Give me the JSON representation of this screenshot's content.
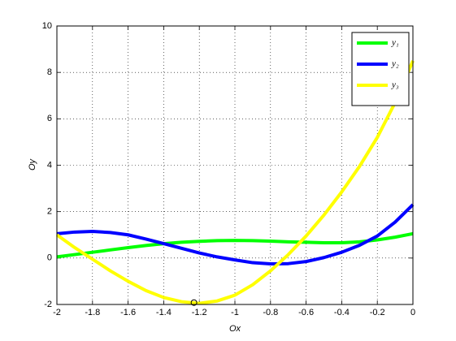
{
  "chart_data": {
    "type": "line",
    "x_label": "Ox",
    "y_label": "Oy",
    "x": [
      -2,
      -1.9,
      -1.8,
      -1.7,
      -1.6,
      -1.5,
      -1.4,
      -1.3,
      -1.2,
      -1.1,
      -1,
      -0.9,
      -0.8,
      -0.7,
      -0.6,
      -0.5,
      -0.4,
      -0.3,
      -0.2,
      -0.1,
      0
    ],
    "series": [
      {
        "name": "y₁",
        "color": "#00ff00",
        "values": [
          0.05,
          0.15,
          0.25,
          0.35,
          0.45,
          0.54,
          0.62,
          0.68,
          0.72,
          0.75,
          0.76,
          0.75,
          0.73,
          0.7,
          0.68,
          0.66,
          0.66,
          0.7,
          0.78,
          0.9,
          1.05
        ]
      },
      {
        "name": "y₂",
        "color": "#0000ff",
        "values": [
          1.05,
          1.12,
          1.15,
          1.1,
          1.0,
          0.82,
          0.62,
          0.42,
          0.22,
          0.05,
          -0.08,
          -0.2,
          -0.25,
          -0.24,
          -0.15,
          0.02,
          0.25,
          0.55,
          0.95,
          1.55,
          2.3
        ]
      },
      {
        "name": "y₃",
        "color": "#ffff00",
        "values": [
          1.0,
          0.45,
          -0.05,
          -0.55,
          -1.0,
          -1.4,
          -1.7,
          -1.88,
          -1.95,
          -1.85,
          -1.6,
          -1.15,
          -0.55,
          0.15,
          0.95,
          1.85,
          2.85,
          3.95,
          5.2,
          6.7,
          8.5
        ]
      }
    ],
    "marker": {
      "x": -1.23,
      "y": -1.92
    },
    "xlim": [
      -2,
      0
    ],
    "xticks": [
      -2,
      -1.8,
      -1.6,
      -1.4,
      -1.2,
      -1,
      -0.8,
      -0.6,
      -0.4,
      -0.2,
      0
    ],
    "ylim": [
      -2,
      10
    ],
    "yticks": [
      -2,
      0,
      2,
      4,
      6,
      8,
      10
    ],
    "grid": true,
    "legend": "top-right"
  }
}
